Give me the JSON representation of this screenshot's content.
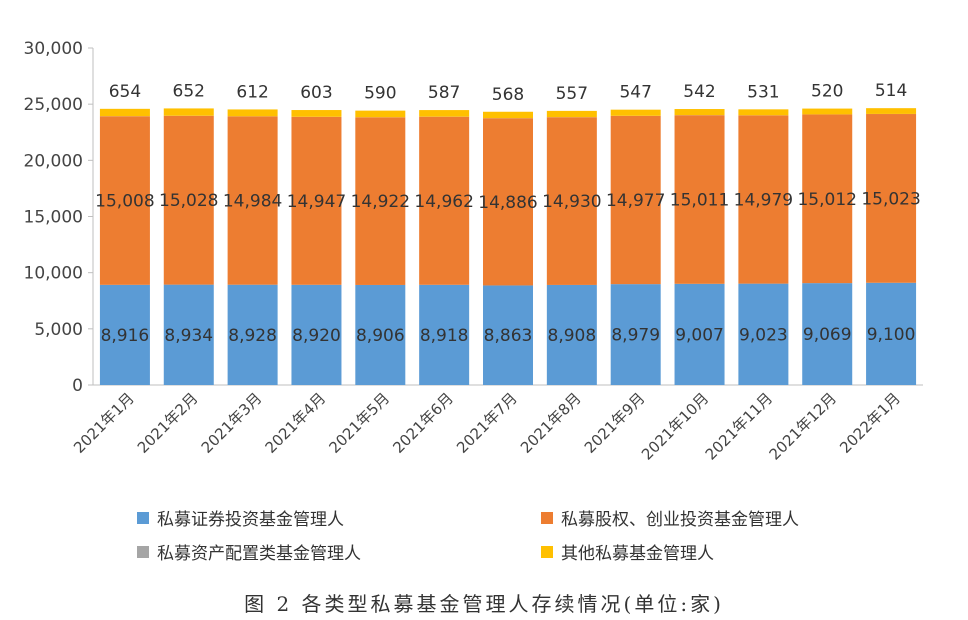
{
  "chart_data": {
    "type": "bar",
    "stacked": true,
    "categories": [
      "2021年1月",
      "2021年2月",
      "2021年3月",
      "2021年4月",
      "2021年5月",
      "2021年6月",
      "2021年7月",
      "2021年8月",
      "2021年9月",
      "2021年10月",
      "2021年11月",
      "2021年12月",
      "2022年1月"
    ],
    "series": [
      {
        "name": "私募证券投资基金管理人",
        "color": "#5B9BD5",
        "values": [
          8916,
          8934,
          8928,
          8920,
          8906,
          8918,
          8863,
          8908,
          8979,
          9007,
          9023,
          9069,
          9100
        ],
        "labels": [
          "8,916",
          "8,934",
          "8,928",
          "8,920",
          "8,906",
          "8,918",
          "8,863",
          "8,908",
          "8,979",
          "9,007",
          "9,023",
          "9,069",
          "9,100"
        ]
      },
      {
        "name": "私募股权、创业投资基金管理人",
        "color": "#ED7D31",
        "values": [
          15008,
          15028,
          14984,
          14947,
          14922,
          14962,
          14886,
          14930,
          14977,
          15011,
          14979,
          15012,
          15023
        ],
        "labels": [
          "15,008",
          "15,028",
          "14,984",
          "14,947",
          "14,922",
          "14,962",
          "14,886",
          "14,930",
          "14,977",
          "15,011",
          "14,979",
          "15,012",
          "15,023"
        ]
      },
      {
        "name": "私募资产配置类基金管理人",
        "color": "#A5A5A5",
        "values": [
          7,
          7,
          7,
          7,
          7,
          7,
          7,
          7,
          7,
          7,
          7,
          7,
          7
        ],
        "labels": []
      },
      {
        "name": "其他私募基金管理人",
        "color": "#FFC000",
        "values": [
          654,
          652,
          612,
          603,
          590,
          587,
          568,
          557,
          547,
          542,
          531,
          520,
          514
        ],
        "labels": [
          "654",
          "652",
          "612",
          "603",
          "590",
          "587",
          "568",
          "557",
          "547",
          "542",
          "531",
          "520",
          "514"
        ]
      }
    ],
    "yticks": [
      "0",
      "5,000",
      "10,000",
      "15,000",
      "20,000",
      "25,000",
      "30,000"
    ],
    "ylim": [
      0,
      30000
    ],
    "grid": false,
    "legend_position": "bottom",
    "caption": "图 2  各类型私募基金管理人存续情况(单位:家)"
  }
}
